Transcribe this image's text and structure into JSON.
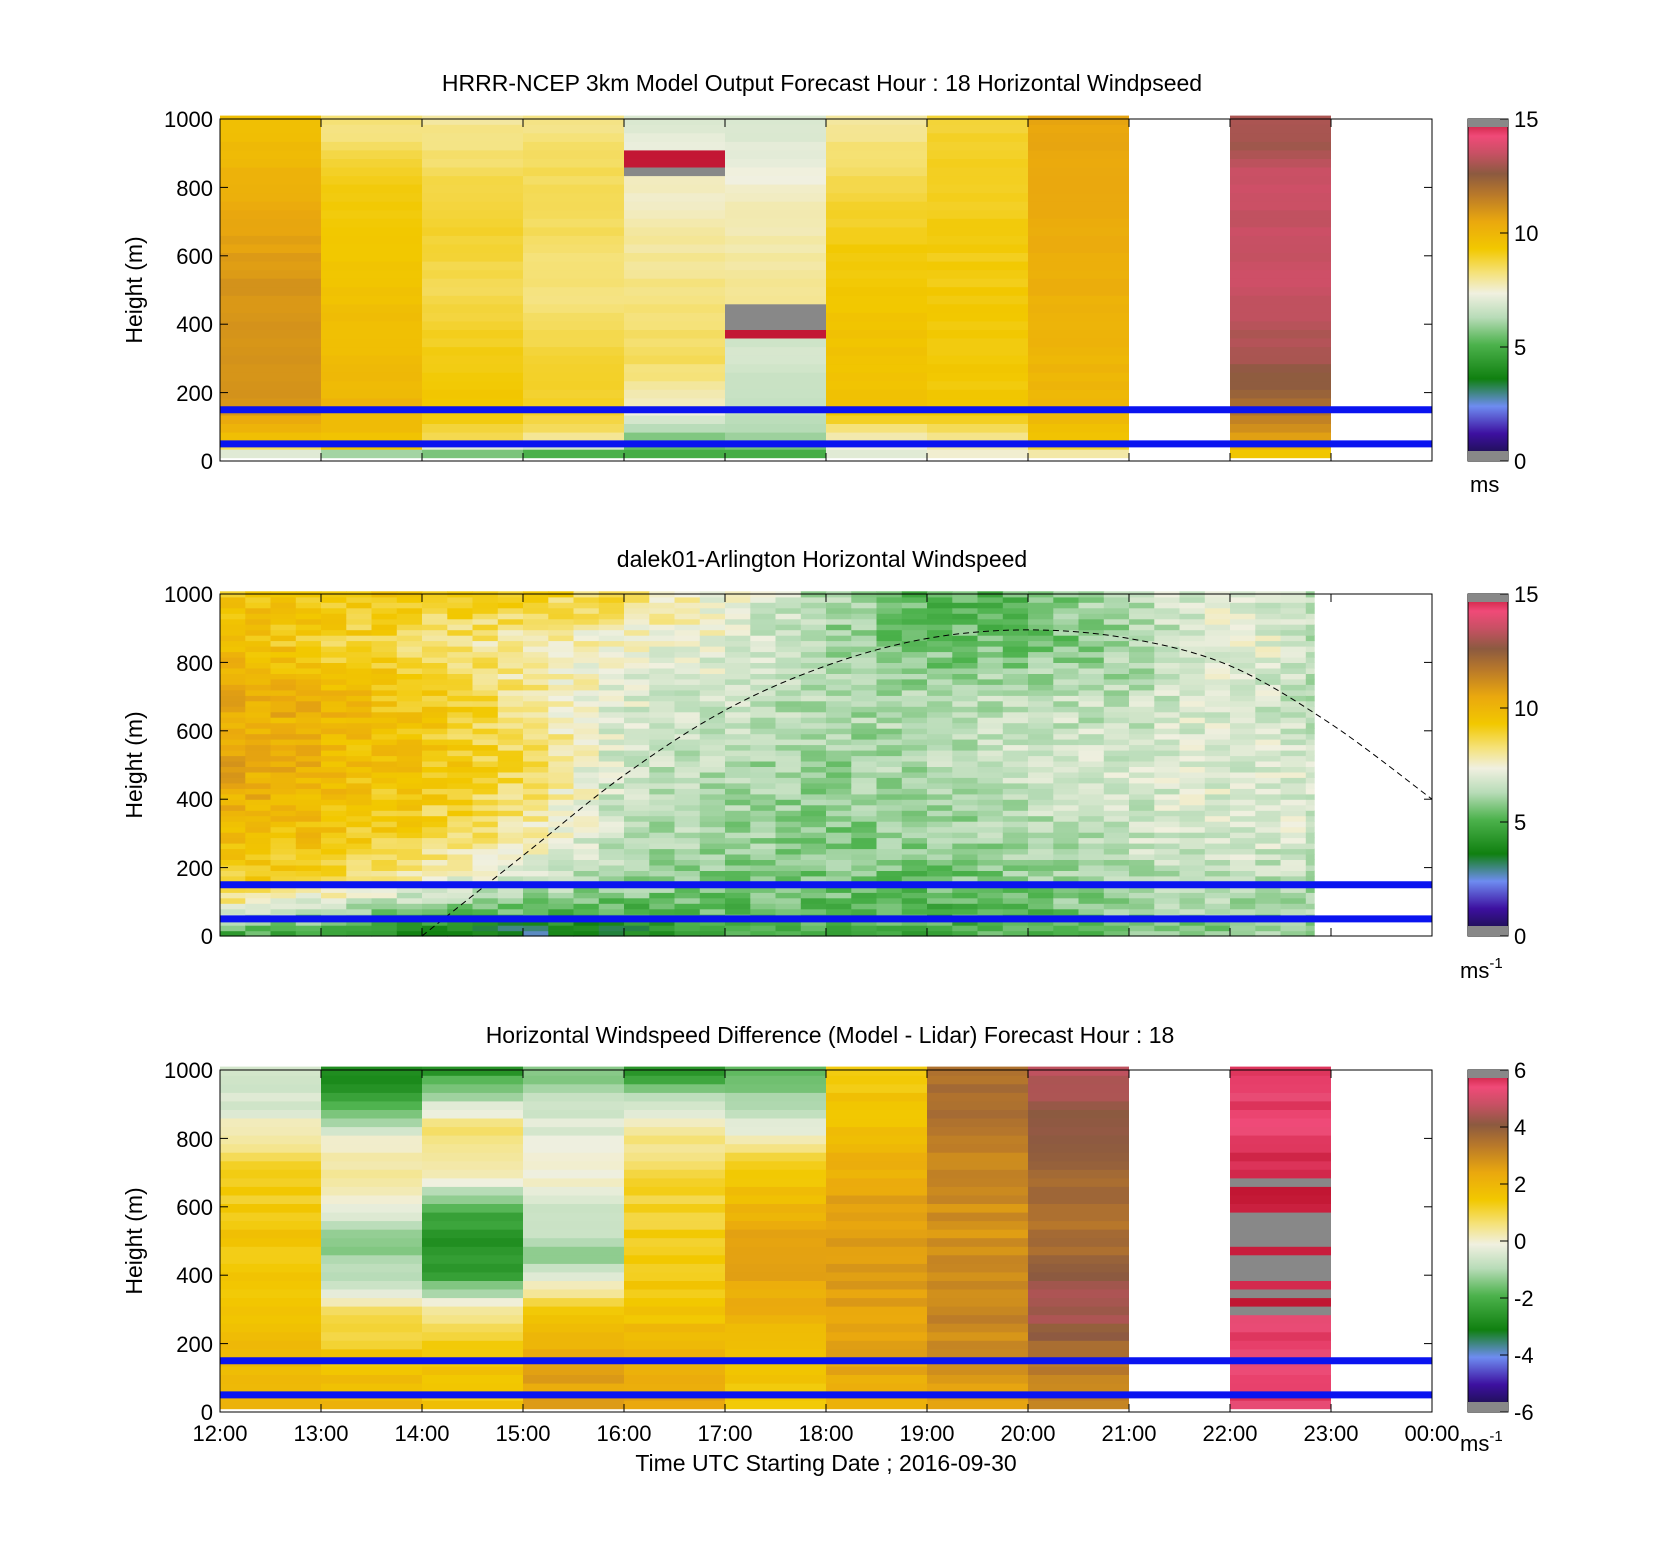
{
  "figure": {
    "xlabel": "Time UTC  Starting Date ; 2016-09-30",
    "time_ticks": [
      "12:00",
      "13:00",
      "14:00",
      "15:00",
      "16:00",
      "17:00",
      "18:00",
      "19:00",
      "20:00",
      "21:00",
      "22:00",
      "23:00",
      "00:00"
    ]
  },
  "colormaps": {
    "speed": [
      "#14103a",
      "#3d10a0",
      "#6e8cf0",
      "#108010",
      "#4cb24c",
      "#b8dcb8",
      "#f0f0e0",
      "#f5e27a",
      "#f2c800",
      "#eaa80e",
      "#b8782a",
      "#8c5a40",
      "#c85064",
      "#f04a78",
      "#c01430",
      "#888888"
    ],
    "difference": [
      "#14103a",
      "#3d10a0",
      "#6e8cf0",
      "#108010",
      "#4cb24c",
      "#b8dcb8",
      "#f0f0e0",
      "#f5e27a",
      "#f2c800",
      "#eaa80e",
      "#b8782a",
      "#8c5a40",
      "#c85064",
      "#f04a78",
      "#c01430",
      "#888888"
    ]
  },
  "chart_data": [
    {
      "type": "heatmap",
      "title": "HRRR-NCEP 3km Model Output   Forecast Hour : 18 Horizontal Windpseed",
      "ylabel": "Height (m)",
      "ylim": [
        0,
        1000
      ],
      "yticks": [
        "0",
        "200",
        "400",
        "600",
        "800",
        "1000"
      ],
      "xlim": [
        "12:00",
        "00:00"
      ],
      "colorbar": {
        "range": [
          0,
          15
        ],
        "ticks": [
          "0",
          "5",
          "10",
          "15"
        ],
        "unit": "ms",
        "unit_superscript": ""
      },
      "reference_lines_m": [
        50,
        150
      ],
      "columns": [
        {
          "start": "12:00",
          "end": "13:00",
          "profile_ms": {
            "30": 7,
            "60": 9.5,
            "150": 11,
            "300": 11,
            "500": 11,
            "700": 10.5,
            "850": 10,
            "1000": 9.5
          }
        },
        {
          "start": "13:00",
          "end": "14:00",
          "profile_ms": {
            "30": 6,
            "60": 9.5,
            "150": 10,
            "300": 9.8,
            "500": 9.5,
            "700": 9.3,
            "850": 9,
            "950": 8.3,
            "1000": 8.2
          }
        },
        {
          "start": "14:00",
          "end": "15:00",
          "profile_ms": {
            "30": 5.5,
            "60": 8.5,
            "150": 9.3,
            "300": 9.2,
            "500": 8.5,
            "700": 9,
            "850": 8.5,
            "1000": 8
          }
        },
        {
          "start": "15:00",
          "end": "16:00",
          "profile_ms": {
            "30": 5,
            "60": 8,
            "150": 9,
            "300": 8.8,
            "500": 8.2,
            "700": 8.5,
            "850": 8.5,
            "1000": 8.1
          }
        },
        {
          "start": "16:00",
          "end": "17:00",
          "profile_ms": {
            "30": 5,
            "60": 5.5,
            "150": 7.5,
            "300": 8.5,
            "500": 8.2,
            "700": 7.8,
            "800": 7.6,
            "850": 15,
            "950": 7.2,
            "1000": 7
          }
        },
        {
          "start": "17:00",
          "end": "18:00",
          "profile_ms": {
            "30": 5,
            "60": 6,
            "150": 6.5,
            "300": 6.8,
            "400": 15,
            "500": 8,
            "700": 7.8,
            "850": 7.3,
            "1000": 6.8
          }
        },
        {
          "start": "18:00",
          "end": "19:00",
          "profile_ms": {
            "30": 7,
            "60": 7.5,
            "150": 9.5,
            "300": 9.5,
            "500": 9.4,
            "700": 9,
            "850": 8.5,
            "1000": 8
          }
        },
        {
          "start": "19:00",
          "end": "20:00",
          "profile_ms": {
            "30": 7.5,
            "60": 8,
            "150": 9.3,
            "300": 9.3,
            "500": 9.2,
            "700": 9.1,
            "850": 9,
            "1000": 8.8
          }
        },
        {
          "start": "20:00",
          "end": "21:00",
          "profile_ms": {
            "30": 7.8,
            "60": 9.5,
            "150": 10,
            "300": 10,
            "500": 10.2,
            "700": 10.3,
            "850": 10.5,
            "1000": 10.5
          }
        },
        {
          "start": "22:00",
          "end": "23:00",
          "profile_ms": {
            "30": 9.5,
            "60": 10.5,
            "150": 12,
            "300": 13,
            "500": 13.5,
            "700": 13.5,
            "850": 13.6,
            "900": 13,
            "1000": 13
          }
        }
      ]
    },
    {
      "type": "heatmap",
      "title": "dalek01-Arlington  Horizontal Windspeed",
      "ylabel": "Height (m)",
      "ylim": [
        0,
        1000
      ],
      "yticks": [
        "0",
        "200",
        "400",
        "600",
        "800",
        "1000"
      ],
      "xlim": [
        "12:00",
        "00:00"
      ],
      "colorbar": {
        "range": [
          0,
          15
        ],
        "ticks": [
          "0",
          "5",
          "10",
          "15"
        ],
        "unit": "ms",
        "unit_superscript": "-1"
      },
      "reference_lines_m": [
        50,
        150
      ],
      "data_end": "22:50",
      "hourly_profile_ms": [
        {
          "time": "12:00",
          "profile": {
            "20": 5,
            "60": 7,
            "150": 9,
            "300": 10,
            "500": 10.5,
            "700": 10.5,
            "850": 10,
            "1000": 9.5
          }
        },
        {
          "time": "13:00",
          "profile": {
            "20": 5,
            "60": 6,
            "150": 8.5,
            "300": 9.5,
            "500": 10,
            "700": 10,
            "850": 9,
            "1000": 9.5
          }
        },
        {
          "time": "14:00",
          "profile": {
            "20": 4,
            "60": 5,
            "150": 7.5,
            "300": 8.8,
            "500": 9.3,
            "700": 9.2,
            "850": 8.5,
            "1000": 9
          }
        },
        {
          "time": "15:00",
          "profile": {
            "20": 3,
            "60": 5,
            "150": 6.5,
            "300": 8,
            "500": 8.7,
            "700": 8.2,
            "850": 7.8,
            "1000": 9
          }
        },
        {
          "time": "16:00",
          "profile": {
            "20": 3.5,
            "60": 5,
            "150": 6,
            "300": 6.4,
            "500": 6.6,
            "700": 7,
            "850": 7.3,
            "1000": 8.5
          }
        },
        {
          "time": "17:00",
          "profile": {
            "20": 5,
            "60": 5.2,
            "150": 5.8,
            "300": 6,
            "500": 6.3,
            "700": 6.7,
            "850": 7.2,
            "1000": 7.3
          }
        },
        {
          "time": "18:00",
          "profile": {
            "20": 5,
            "60": 5.2,
            "150": 5.6,
            "300": 5.8,
            "500": 6,
            "700": 6.2,
            "850": 6,
            "1000": 6.3
          }
        },
        {
          "time": "19:00",
          "profile": {
            "20": 5,
            "60": 5,
            "150": 5.4,
            "300": 5.8,
            "500": 6.3,
            "700": 6.2,
            "850": 5.5,
            "1000": 5.2
          }
        },
        {
          "time": "20:00",
          "profile": {
            "20": 5,
            "60": 5.2,
            "150": 5.8,
            "300": 6.3,
            "500": 6.7,
            "700": 6.5,
            "850": 5.5,
            "1000": 5.3
          }
        },
        {
          "time": "21:00",
          "profile": {
            "20": 5.5,
            "60": 5.8,
            "150": 6.3,
            "300": 6.6,
            "500": 6.8,
            "700": 6.5,
            "850": 6,
            "1000": 6.5
          }
        },
        {
          "time": "22:00",
          "profile": {
            "20": 5.8,
            "60": 6,
            "150": 6.5,
            "300": 7,
            "500": 7,
            "700": 7,
            "850": 7.5,
            "1000": 7
          }
        },
        {
          "time": "22:50",
          "profile": {
            "20": 6,
            "60": 6,
            "150": 6.3,
            "300": 6.8,
            "500": 6.8,
            "700": 6.5,
            "850": 6.5,
            "1000": 6.5
          }
        }
      ],
      "dashed_curve_m": [
        {
          "time": "14:00",
          "height": 0
        },
        {
          "time": "15:00",
          "height": 235
        },
        {
          "time": "16:00",
          "height": 470
        },
        {
          "time": "17:00",
          "height": 660
        },
        {
          "time": "18:00",
          "height": 790
        },
        {
          "time": "19:00",
          "height": 870
        },
        {
          "time": "20:00",
          "height": 895
        },
        {
          "time": "21:00",
          "height": 870
        },
        {
          "time": "22:00",
          "height": 790
        },
        {
          "time": "23:00",
          "height": 620
        },
        {
          "time": "00:00",
          "height": 400
        }
      ]
    },
    {
      "type": "heatmap",
      "title": "Horizontal Windspeed Difference (Model - Lidar) Forecast Hour : 18",
      "ylabel": "Height (m)",
      "ylim": [
        0,
        1000
      ],
      "yticks": [
        "0",
        "200",
        "400",
        "600",
        "800",
        "1000"
      ],
      "xlim": [
        "12:00",
        "00:00"
      ],
      "colorbar": {
        "range": [
          -6,
          6
        ],
        "ticks": [
          "-6",
          "-4",
          "-2",
          "0",
          "2",
          "4",
          "6"
        ],
        "unit": "ms",
        "unit_superscript": "-1"
      },
      "reference_lines_m": [
        50,
        150
      ],
      "columns": [
        {
          "start": "12:00",
          "end": "13:00",
          "profile_ms": {
            "30": 2,
            "150": 2,
            "300": 1.5,
            "500": 1.5,
            "700": 1.2,
            "800": 0.3,
            "900": -0.5,
            "1000": -0.8
          }
        },
        {
          "start": "13:00",
          "end": "14:00",
          "profile_ms": {
            "30": 2,
            "150": 1.5,
            "300": 0.8,
            "400": -1,
            "500": -1.5,
            "600": 0,
            "700": 0.5,
            "800": -0.2,
            "900": -2,
            "1000": -3
          }
        },
        {
          "start": "14:00",
          "end": "15:00",
          "profile_ms": {
            "30": 1.5,
            "150": 1.5,
            "300": 0.5,
            "400": -2.5,
            "500": -2.8,
            "600": -2,
            "700": 0.5,
            "850": 0.5,
            "1000": -2.5
          }
        },
        {
          "start": "15:00",
          "end": "16:00",
          "profile_ms": {
            "30": 2.5,
            "150": 2.5,
            "300": 1.2,
            "450": -1.2,
            "600": -0.5,
            "700": 0,
            "850": -0.5,
            "1000": -1.5
          }
        },
        {
          "start": "16:00",
          "end": "17:00",
          "profile_ms": {
            "30": 2.5,
            "150": 2.2,
            "300": 1.5,
            "500": 1.3,
            "700": 1,
            "800": 0.5,
            "900": -0.5,
            "1000": -2.5
          }
        },
        {
          "start": "17:00",
          "end": "18:00",
          "profile_ms": {
            "30": 1.5,
            "150": 1.5,
            "300": 2.2,
            "500": 2.5,
            "700": 1.5,
            "800": 0,
            "900": -1,
            "1000": -2
          }
        },
        {
          "start": "18:00",
          "end": "19:00",
          "profile_ms": {
            "30": 2,
            "150": 2.5,
            "300": 2.5,
            "500": 2.8,
            "700": 2.2,
            "850": 1.6,
            "1000": 1.5
          }
        },
        {
          "start": "19:00",
          "end": "20:00",
          "profile_ms": {
            "30": 2.5,
            "150": 2.8,
            "300": 3.2,
            "500": 2.8,
            "700": 3,
            "850": 3.5,
            "1000": 3.5
          }
        },
        {
          "start": "20:00",
          "end": "21:00",
          "profile_ms": {
            "30": 3,
            "150": 3.5,
            "300": 4.5,
            "400": 4.2,
            "500": 3.5,
            "700": 3.6,
            "850": 4.2,
            "1000": 4.5
          }
        },
        {
          "start": "22:00",
          "end": "23:00",
          "profile_ms": {
            "30": 5.5,
            "150": 5.5,
            "280": 5.5,
            "300": 6,
            "500": 6,
            "700": 6,
            "800": 5.5,
            "900": 5.5,
            "1000": 5.5
          }
        }
      ]
    }
  ]
}
